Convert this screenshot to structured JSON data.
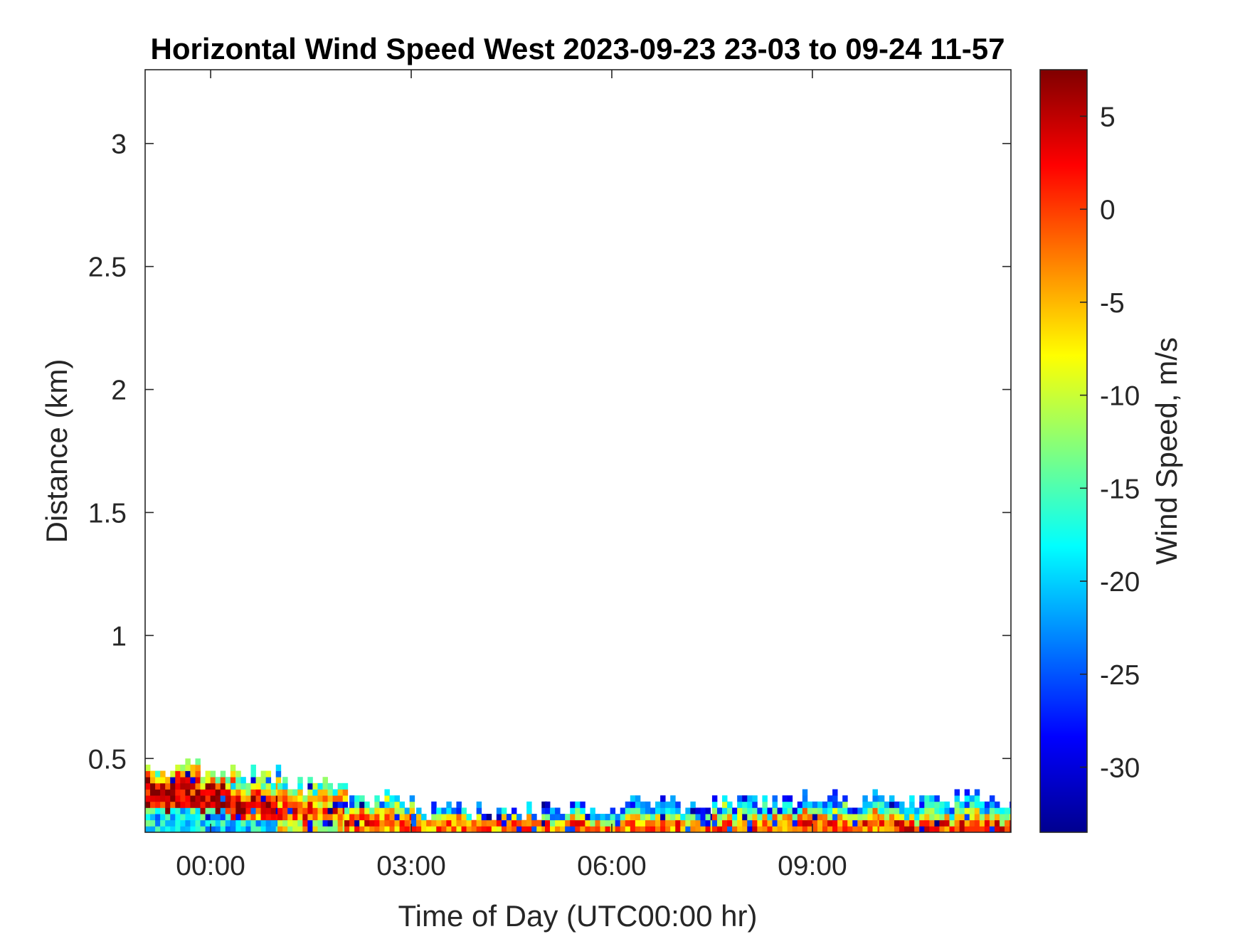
{
  "chart_data": {
    "type": "heatmap",
    "title": "Horizontal Wind Speed West 2023-09-23 23-03 to 09-24 11-57",
    "xlabel": "Time of Day (UTC00:00 hr)",
    "ylabel": "Distance (km)",
    "x_unit": "hours relative to 2023-09-24 00:00 UTC",
    "xlim": [
      -0.98,
      11.97
    ],
    "xticks": [
      0,
      3,
      6,
      9
    ],
    "xtick_labels": [
      "00:00",
      "03:00",
      "06:00",
      "09:00"
    ],
    "ylim": [
      0.2,
      3.3
    ],
    "yticks": [
      0.5,
      1,
      1.5,
      2,
      2.5,
      3
    ],
    "ytick_labels": [
      "0.5",
      "1",
      "1.5",
      "2",
      "2.5",
      "3"
    ],
    "colorbar": {
      "label": "Wind Speed, m/s",
      "colormap": "jet",
      "clim": [
        -33.5,
        7.5
      ],
      "ticks": [
        5,
        0,
        -5,
        -10,
        -15,
        -20,
        -25,
        -30
      ],
      "tick_labels": [
        "5",
        "0",
        "-5",
        "-10",
        "-15",
        "-20",
        "-25",
        "-30"
      ]
    },
    "grid": false,
    "time_step_hours": 0.075,
    "range_step_km": 0.025,
    "description_of_values": "Lowest range gates (approx. 0.2-0.5 km) contain data; above is empty.",
    "profiles": [
      {
        "t_start": -0.98,
        "t_end": 0.3,
        "top_km": 0.45,
        "band_values": [
          -19,
          -20,
          -17,
          4,
          5,
          3,
          6,
          -4,
          -10
        ]
      },
      {
        "t_start": 0.3,
        "t_end": 1.0,
        "top_km": 0.42,
        "band_values": [
          -18,
          -2,
          3,
          4,
          -3,
          -12,
          -15
        ]
      },
      {
        "t_start": 1.0,
        "t_end": 2.0,
        "top_km": 0.38,
        "band_values": [
          -8,
          -2,
          0,
          -5,
          -6,
          -15
        ]
      },
      {
        "t_start": 2.0,
        "t_end": 3.0,
        "top_km": 0.33,
        "band_values": [
          -3,
          2,
          -5,
          -14,
          -20
        ]
      },
      {
        "t_start": 3.0,
        "t_end": 5.0,
        "top_km": 0.28,
        "band_values": [
          -3,
          -6,
          -22
        ]
      },
      {
        "t_start": 5.0,
        "t_end": 7.5,
        "top_km": 0.3,
        "band_values": [
          -2,
          -8,
          -18,
          -25
        ]
      },
      {
        "t_start": 7.5,
        "t_end": 10.0,
        "top_km": 0.32,
        "band_values": [
          -1,
          -6,
          -15,
          -24
        ]
      },
      {
        "t_start": 10.0,
        "t_end": 11.97,
        "top_km": 0.33,
        "band_values": [
          0,
          -7,
          -16,
          -22
        ]
      }
    ]
  }
}
